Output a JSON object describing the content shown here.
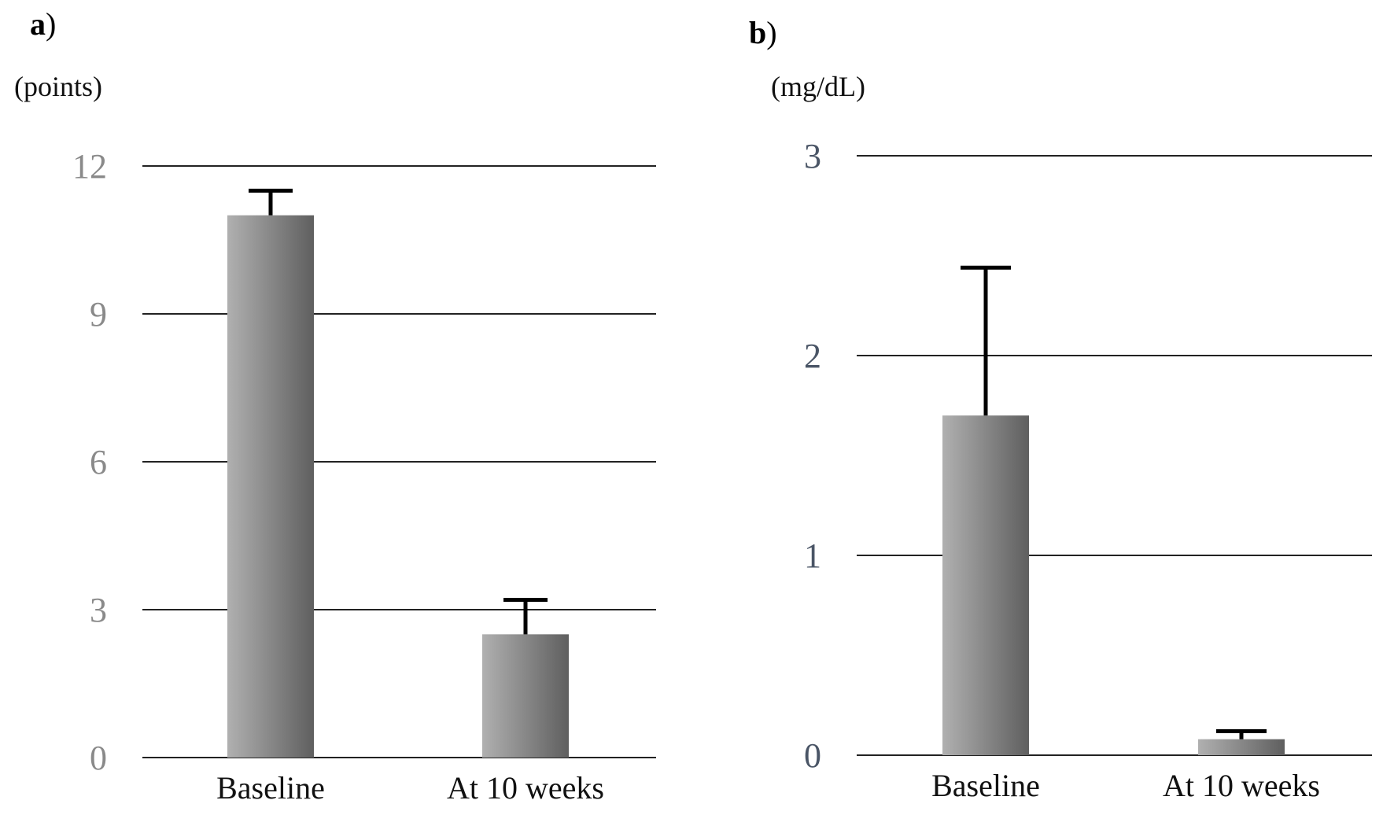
{
  "colors": {
    "bar_light": "#b0b0b0",
    "bar_dark": "#5f5f5f",
    "grid": "#222222",
    "tick_a": "#8a8a8a",
    "tick_b": "#4a5566",
    "error_bar": "#000000"
  },
  "chart_data": [
    {
      "type": "bar",
      "panel_label": "a",
      "unit_label": "(points)",
      "categories": [
        "Baseline",
        "At 10 weeks"
      ],
      "values": [
        11.0,
        2.5
      ],
      "errors": [
        0.5,
        0.7
      ],
      "yticks": [
        "0",
        "3",
        "6",
        "9",
        "12"
      ],
      "ylim": [
        0,
        12
      ],
      "grid": true
    },
    {
      "type": "bar",
      "panel_label": "b",
      "unit_label": "(mg/dL)",
      "categories": [
        "Baseline",
        "At 10 weeks"
      ],
      "values": [
        1.7,
        0.08
      ],
      "errors": [
        0.74,
        0.04
      ],
      "yticks": [
        "0",
        "1",
        "2",
        "3"
      ],
      "ylim": [
        0,
        3
      ],
      "grid": true
    }
  ]
}
